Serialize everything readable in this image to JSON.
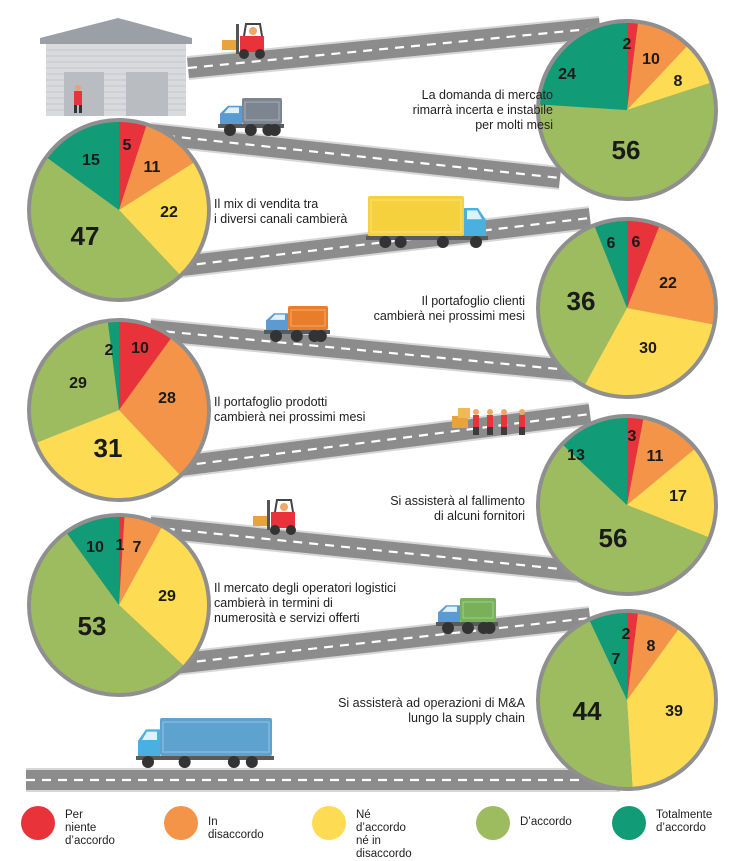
{
  "colors": {
    "per_niente": "#e8333b",
    "disaccordo": "#f39448",
    "neutro": "#fddb52",
    "accordo": "#9dbc5f",
    "totalmente": "#119b77",
    "road": "#8c8c8c",
    "road_edge": "#d7d7d7"
  },
  "legend": [
    {
      "key": "per_niente",
      "label": "Per niente\nd’accordo"
    },
    {
      "key": "disaccordo",
      "label": "In disaccordo"
    },
    {
      "key": "neutro",
      "label": "Né d’accordo\nné in disaccordo"
    },
    {
      "key": "accordo",
      "label": "D’accordo"
    },
    {
      "key": "totalmente",
      "label": "Totalmente\nd’accordo"
    }
  ],
  "chart_data": [
    {
      "type": "pie",
      "title": "La domanda di mercato\nrimarrà incerta e instabile\nper molti mesi",
      "categories": [
        "Per niente d’accordo",
        "In disaccordo",
        "Né d’accordo né in disaccordo",
        "D’accordo",
        "Totalmente d’accordo"
      ],
      "values": [
        2,
        10,
        8,
        56,
        24
      ]
    },
    {
      "type": "pie",
      "title": "Il mix di vendita tra\ni diversi canali cambierà",
      "categories": [
        "Per niente d’accordo",
        "In disaccordo",
        "Né d’accordo né in disaccordo",
        "D’accordo",
        "Totalmente d’accordo"
      ],
      "values": [
        5,
        11,
        22,
        47,
        15
      ]
    },
    {
      "type": "pie",
      "title": "Il portafoglio clienti\ncambierà nei prossimi mesi",
      "categories": [
        "Per niente d’accordo",
        "In disaccordo",
        "Né d’accordo né in disaccordo",
        "D’accordo",
        "Totalmente d’accordo"
      ],
      "values": [
        6,
        22,
        30,
        36,
        6
      ]
    },
    {
      "type": "pie",
      "title": "Il portafoglio prodotti\ncambierà nei prossimi mesi",
      "categories": [
        "Per niente d’accordo",
        "In disaccordo",
        "Né d’accordo né in disaccordo",
        "D’accordo",
        "Totalmente d’accordo"
      ],
      "values": [
        10,
        28,
        31,
        29,
        2
      ]
    },
    {
      "type": "pie",
      "title": "Si assisterà al fallimento\ndi alcuni fornitori",
      "categories": [
        "Per niente d’accordo",
        "In disaccordo",
        "Né d’accordo né in disaccordo",
        "D’accordo",
        "Totalmente d’accordo"
      ],
      "values": [
        3,
        11,
        17,
        56,
        13
      ]
    },
    {
      "type": "pie",
      "title": "Il mercato degli operatori logistici\ncambierà in termini di\nnumerosità e servizi offerti",
      "categories": [
        "Per niente d’accordo",
        "In disaccordo",
        "Né d’accordo né in disaccordo",
        "D’accordo",
        "Totalmente d’accordo"
      ],
      "values": [
        1,
        7,
        29,
        53,
        10
      ]
    },
    {
      "type": "pie",
      "title": "Si assisterà ad operazioni di M&A\nlungo la supply chain",
      "categories": [
        "Per niente d’accordo",
        "In disaccordo",
        "Né d’accordo né in disaccordo",
        "D’accordo",
        "Totalmente d’accordo"
      ],
      "values": [
        2,
        8,
        39,
        44,
        7
      ]
    }
  ]
}
